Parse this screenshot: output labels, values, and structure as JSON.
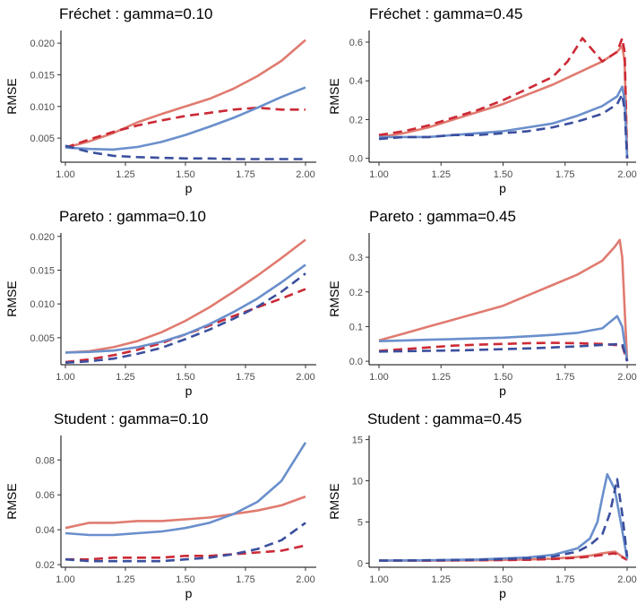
{
  "colors": {
    "solid_red": "#e07b70",
    "dashed_red": "#cc2a36",
    "solid_blue": "#6a8fcc",
    "dashed_blue": "#3b4f9e"
  },
  "chart_data": [
    {
      "type": "line",
      "title": "Fréchet : gamma=0.10",
      "xlabel": "p",
      "ylabel": "RMSE",
      "xlim": [
        1.0,
        2.0
      ],
      "ylim": [
        0.0012,
        0.022
      ],
      "xticks": [
        "1.00",
        "1.25",
        "1.50",
        "1.75",
        "2.00"
      ],
      "yticks": [
        "0.005",
        "0.010",
        "0.015",
        "0.020"
      ],
      "series": [
        {
          "style": "solid",
          "color": "#e07b70",
          "x": [
            1.0,
            1.1,
            1.2,
            1.3,
            1.4,
            1.5,
            1.6,
            1.7,
            1.8,
            1.9,
            2.0
          ],
          "y": [
            0.0035,
            0.0045,
            0.0058,
            0.0075,
            0.0088,
            0.01,
            0.0112,
            0.0128,
            0.0148,
            0.0172,
            0.0205
          ]
        },
        {
          "style": "dashed",
          "color": "#cc2a36",
          "x": [
            1.0,
            1.1,
            1.2,
            1.3,
            1.4,
            1.5,
            1.6,
            1.7,
            1.8,
            1.9,
            2.0
          ],
          "y": [
            0.0035,
            0.0048,
            0.006,
            0.007,
            0.0078,
            0.0085,
            0.009,
            0.0095,
            0.0098,
            0.0095,
            0.0095
          ]
        },
        {
          "style": "solid",
          "color": "#6a8fcc",
          "x": [
            1.0,
            1.1,
            1.2,
            1.3,
            1.4,
            1.5,
            1.6,
            1.7,
            1.8,
            1.9,
            2.0
          ],
          "y": [
            0.0035,
            0.0033,
            0.0032,
            0.0036,
            0.0044,
            0.0055,
            0.0068,
            0.0082,
            0.0098,
            0.0115,
            0.013
          ]
        },
        {
          "style": "dashed",
          "color": "#3b4f9e",
          "x": [
            1.0,
            1.1,
            1.2,
            1.3,
            1.4,
            1.5,
            1.6,
            1.7,
            1.8,
            1.9,
            2.0
          ],
          "y": [
            0.0038,
            0.0028,
            0.0022,
            0.002,
            0.0019,
            0.0018,
            0.0018,
            0.0017,
            0.0017,
            0.0017,
            0.0017
          ]
        }
      ]
    },
    {
      "type": "line",
      "title": "Fréchet : gamma=0.45",
      "xlabel": "p",
      "ylabel": "RMSE",
      "xlim": [
        1.0,
        2.0
      ],
      "ylim": [
        -0.02,
        0.66
      ],
      "xticks": [
        "1.00",
        "1.25",
        "1.50",
        "1.75",
        "2.00"
      ],
      "yticks": [
        "0.0",
        "0.2",
        "0.4",
        "0.6"
      ],
      "series": [
        {
          "style": "solid",
          "color": "#e07b70",
          "x": [
            1.0,
            1.1,
            1.2,
            1.3,
            1.4,
            1.5,
            1.6,
            1.7,
            1.8,
            1.9,
            1.96,
            1.98,
            1.99,
            2.0
          ],
          "y": [
            0.11,
            0.13,
            0.16,
            0.2,
            0.24,
            0.28,
            0.33,
            0.38,
            0.44,
            0.5,
            0.55,
            0.58,
            0.5,
            0.0
          ]
        },
        {
          "style": "dashed",
          "color": "#cc2a36",
          "x": [
            1.0,
            1.1,
            1.2,
            1.3,
            1.4,
            1.5,
            1.6,
            1.7,
            1.76,
            1.8,
            1.82,
            1.9,
            1.96,
            1.98,
            1.99,
            2.0
          ],
          "y": [
            0.12,
            0.14,
            0.17,
            0.21,
            0.25,
            0.3,
            0.36,
            0.42,
            0.5,
            0.58,
            0.62,
            0.5,
            0.55,
            0.62,
            0.55,
            0.0
          ]
        },
        {
          "style": "solid",
          "color": "#6a8fcc",
          "x": [
            1.0,
            1.1,
            1.2,
            1.3,
            1.4,
            1.5,
            1.6,
            1.7,
            1.8,
            1.9,
            1.96,
            1.98,
            1.99,
            2.0
          ],
          "y": [
            0.11,
            0.11,
            0.11,
            0.12,
            0.13,
            0.14,
            0.16,
            0.18,
            0.22,
            0.27,
            0.32,
            0.37,
            0.3,
            0.0
          ]
        },
        {
          "style": "dashed",
          "color": "#3b4f9e",
          "x": [
            1.0,
            1.1,
            1.2,
            1.3,
            1.4,
            1.5,
            1.6,
            1.7,
            1.8,
            1.9,
            1.96,
            1.98,
            1.99,
            2.0
          ],
          "y": [
            0.1,
            0.11,
            0.11,
            0.12,
            0.12,
            0.13,
            0.14,
            0.16,
            0.19,
            0.23,
            0.28,
            0.33,
            0.25,
            0.0
          ]
        }
      ]
    },
    {
      "type": "line",
      "title": "Pareto : gamma=0.10",
      "xlabel": "p",
      "ylabel": "RMSE",
      "xlim": [
        1.0,
        2.0
      ],
      "ylim": [
        0.001,
        0.0205
      ],
      "xticks": [
        "1.00",
        "1.25",
        "1.50",
        "1.75",
        "2.00"
      ],
      "yticks": [
        "0.005",
        "0.010",
        "0.015",
        "0.020"
      ],
      "series": [
        {
          "style": "solid",
          "color": "#e07b70",
          "x": [
            1.0,
            1.1,
            1.2,
            1.3,
            1.4,
            1.5,
            1.6,
            1.7,
            1.8,
            1.9,
            2.0
          ],
          "y": [
            0.0028,
            0.003,
            0.0036,
            0.0045,
            0.0058,
            0.0075,
            0.0095,
            0.0118,
            0.0142,
            0.0168,
            0.0195
          ]
        },
        {
          "style": "dashed",
          "color": "#cc2a36",
          "x": [
            1.0,
            1.1,
            1.2,
            1.3,
            1.4,
            1.5,
            1.6,
            1.7,
            1.8,
            1.9,
            2.0
          ],
          "y": [
            0.0014,
            0.0018,
            0.0024,
            0.0032,
            0.0042,
            0.0055,
            0.0068,
            0.0082,
            0.0095,
            0.0108,
            0.0122
          ]
        },
        {
          "style": "solid",
          "color": "#6a8fcc",
          "x": [
            1.0,
            1.1,
            1.2,
            1.3,
            1.4,
            1.5,
            1.6,
            1.7,
            1.8,
            1.9,
            2.0
          ],
          "y": [
            0.0028,
            0.0029,
            0.0031,
            0.0036,
            0.0044,
            0.0055,
            0.007,
            0.0088,
            0.0108,
            0.0132,
            0.0158
          ]
        },
        {
          "style": "dashed",
          "color": "#3b4f9e",
          "x": [
            1.0,
            1.1,
            1.2,
            1.3,
            1.4,
            1.5,
            1.6,
            1.7,
            1.8,
            1.9,
            2.0
          ],
          "y": [
            0.0013,
            0.0015,
            0.0019,
            0.0026,
            0.0035,
            0.0048,
            0.0062,
            0.0078,
            0.0096,
            0.0118,
            0.0145
          ]
        }
      ]
    },
    {
      "type": "line",
      "title": "Pareto : gamma=0.45",
      "xlabel": "p",
      "ylabel": "RMSE",
      "xlim": [
        1.0,
        2.0
      ],
      "ylim": [
        -0.01,
        0.37
      ],
      "xticks": [
        "1.00",
        "1.25",
        "1.50",
        "1.75",
        "2.00"
      ],
      "yticks": [
        "0.0",
        "0.1",
        "0.2",
        "0.3"
      ],
      "series": [
        {
          "style": "solid",
          "color": "#e07b70",
          "x": [
            1.0,
            1.1,
            1.2,
            1.3,
            1.4,
            1.5,
            1.6,
            1.7,
            1.8,
            1.9,
            1.95,
            1.97,
            1.98,
            2.0
          ],
          "y": [
            0.06,
            0.08,
            0.1,
            0.12,
            0.14,
            0.16,
            0.19,
            0.22,
            0.25,
            0.29,
            0.33,
            0.35,
            0.3,
            0.0
          ]
        },
        {
          "style": "dashed",
          "color": "#cc2a36",
          "x": [
            1.0,
            1.1,
            1.2,
            1.3,
            1.4,
            1.5,
            1.6,
            1.7,
            1.8,
            1.9,
            1.98,
            2.0
          ],
          "y": [
            0.03,
            0.035,
            0.04,
            0.045,
            0.048,
            0.05,
            0.052,
            0.053,
            0.052,
            0.05,
            0.045,
            0.0
          ]
        },
        {
          "style": "solid",
          "color": "#6a8fcc",
          "x": [
            1.0,
            1.1,
            1.2,
            1.3,
            1.4,
            1.5,
            1.6,
            1.7,
            1.8,
            1.9,
            1.96,
            1.98,
            2.0
          ],
          "y": [
            0.058,
            0.06,
            0.062,
            0.064,
            0.066,
            0.068,
            0.072,
            0.076,
            0.082,
            0.095,
            0.13,
            0.1,
            0.0
          ]
        },
        {
          "style": "dashed",
          "color": "#3b4f9e",
          "x": [
            1.0,
            1.1,
            1.2,
            1.3,
            1.4,
            1.5,
            1.6,
            1.7,
            1.8,
            1.9,
            1.98,
            2.0
          ],
          "y": [
            0.028,
            0.029,
            0.03,
            0.031,
            0.033,
            0.035,
            0.037,
            0.04,
            0.043,
            0.047,
            0.05,
            0.0
          ]
        }
      ]
    },
    {
      "type": "line",
      "title": "Student : gamma=0.10",
      "xlabel": "p",
      "ylabel": "RMSE",
      "xlim": [
        1.0,
        2.0
      ],
      "ylim": [
        0.0185,
        0.094
      ],
      "xticks": [
        "1.00",
        "1.25",
        "1.50",
        "1.75",
        "2.00"
      ],
      "yticks": [
        "0.02",
        "0.04",
        "0.06",
        "0.08"
      ],
      "series": [
        {
          "style": "solid",
          "color": "#e07b70",
          "x": [
            1.0,
            1.1,
            1.2,
            1.3,
            1.4,
            1.5,
            1.6,
            1.7,
            1.8,
            1.9,
            2.0
          ],
          "y": [
            0.041,
            0.044,
            0.044,
            0.045,
            0.045,
            0.046,
            0.047,
            0.049,
            0.051,
            0.054,
            0.059
          ]
        },
        {
          "style": "dashed",
          "color": "#cc2a36",
          "x": [
            1.0,
            1.1,
            1.2,
            1.3,
            1.4,
            1.5,
            1.6,
            1.7,
            1.8,
            1.9,
            2.0
          ],
          "y": [
            0.023,
            0.023,
            0.024,
            0.024,
            0.024,
            0.025,
            0.025,
            0.026,
            0.027,
            0.028,
            0.031
          ]
        },
        {
          "style": "solid",
          "color": "#6a8fcc",
          "x": [
            1.0,
            1.1,
            1.2,
            1.3,
            1.4,
            1.5,
            1.6,
            1.7,
            1.8,
            1.9,
            2.0
          ],
          "y": [
            0.038,
            0.037,
            0.037,
            0.038,
            0.039,
            0.041,
            0.044,
            0.049,
            0.056,
            0.068,
            0.09
          ]
        },
        {
          "style": "dashed",
          "color": "#3b4f9e",
          "x": [
            1.0,
            1.1,
            1.2,
            1.3,
            1.4,
            1.5,
            1.6,
            1.7,
            1.8,
            1.9,
            2.0
          ],
          "y": [
            0.023,
            0.022,
            0.022,
            0.022,
            0.022,
            0.023,
            0.024,
            0.026,
            0.029,
            0.034,
            0.044
          ]
        }
      ]
    },
    {
      "type": "line",
      "title": "Student : gamma=0.45",
      "xlabel": "p",
      "ylabel": "RMSE",
      "xlim": [
        1.0,
        2.0
      ],
      "ylim": [
        -0.5,
        15.5
      ],
      "xticks": [
        "1.00",
        "1.25",
        "1.50",
        "1.75",
        "2.00"
      ],
      "yticks": [
        "0",
        "5",
        "10",
        "15"
      ],
      "series": [
        {
          "style": "solid",
          "color": "#e07b70",
          "x": [
            1.0,
            1.2,
            1.4,
            1.6,
            1.7,
            1.8,
            1.85,
            1.9,
            1.95,
            2.0
          ],
          "y": [
            0.3,
            0.3,
            0.35,
            0.45,
            0.55,
            0.75,
            0.9,
            1.2,
            1.4,
            0.4
          ]
        },
        {
          "style": "dashed",
          "color": "#cc2a36",
          "x": [
            1.0,
            1.2,
            1.4,
            1.6,
            1.7,
            1.8,
            1.85,
            1.9,
            1.95,
            2.0
          ],
          "y": [
            0.3,
            0.3,
            0.35,
            0.4,
            0.5,
            0.65,
            0.8,
            1.0,
            1.2,
            0.4
          ]
        },
        {
          "style": "solid",
          "color": "#6a8fcc",
          "x": [
            1.0,
            1.2,
            1.4,
            1.6,
            1.7,
            1.8,
            1.85,
            1.88,
            1.9,
            1.92,
            1.95,
            1.98,
            2.0
          ],
          "y": [
            0.3,
            0.35,
            0.45,
            0.7,
            1.0,
            1.8,
            3.0,
            5.0,
            8.0,
            10.8,
            9.0,
            4.0,
            0.5
          ]
        },
        {
          "style": "dashed",
          "color": "#3b4f9e",
          "x": [
            1.0,
            1.2,
            1.4,
            1.6,
            1.7,
            1.8,
            1.85,
            1.9,
            1.93,
            1.96,
            1.98,
            2.0
          ],
          "y": [
            0.3,
            0.35,
            0.4,
            0.6,
            0.8,
            1.4,
            2.2,
            3.5,
            6.0,
            10.2,
            6.0,
            0.8
          ]
        }
      ]
    }
  ]
}
